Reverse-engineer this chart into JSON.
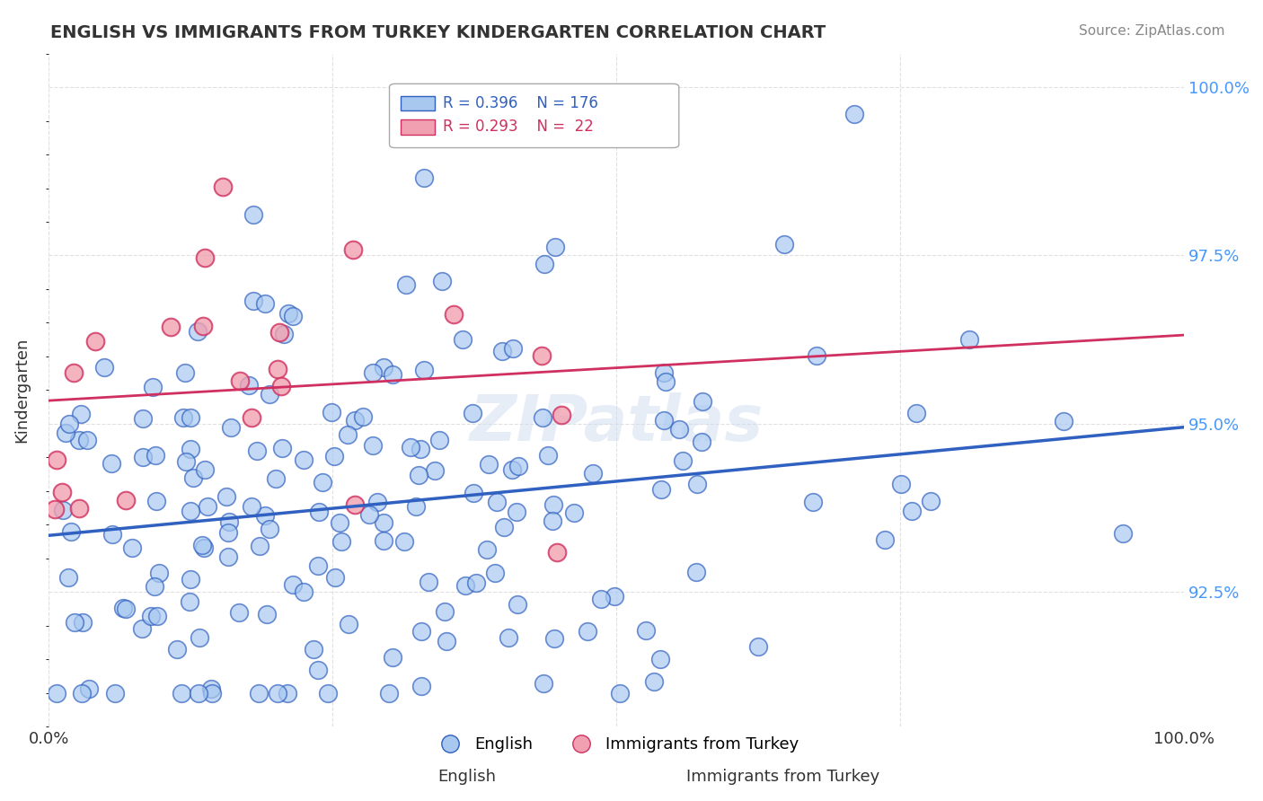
{
  "title": "ENGLISH VS IMMIGRANTS FROM TURKEY KINDERGARTEN CORRELATION CHART",
  "source_text": "Source: ZipAtlas.com",
  "xlabel": "",
  "ylabel": "Kindergarten",
  "legend_english": "English",
  "legend_immigrants": "Immigrants from Turkey",
  "r_english": 0.396,
  "n_english": 176,
  "r_immigrants": 0.293,
  "n_immigrants": 22,
  "english_color": "#a8c8f0",
  "english_line_color": "#3060c0",
  "immigrants_color": "#f0a0b0",
  "immigrants_line_color": "#d03060",
  "watermark": "ZIPatlas",
  "xlim": [
    0.0,
    1.0
  ],
  "ylim": [
    0.905,
    1.005
  ],
  "yticks": [
    0.925,
    0.95,
    0.975,
    1.0
  ],
  "ytick_labels": [
    "92.5%",
    "95.0%",
    "97.5%",
    "100.0%"
  ],
  "xticks": [
    0.0,
    0.25,
    0.5,
    0.75,
    1.0
  ],
  "xtick_labels": [
    "0.0%",
    "",
    "",
    "",
    "100.0%"
  ],
  "background_color": "#ffffff",
  "grid_color": "#e0e0e0"
}
